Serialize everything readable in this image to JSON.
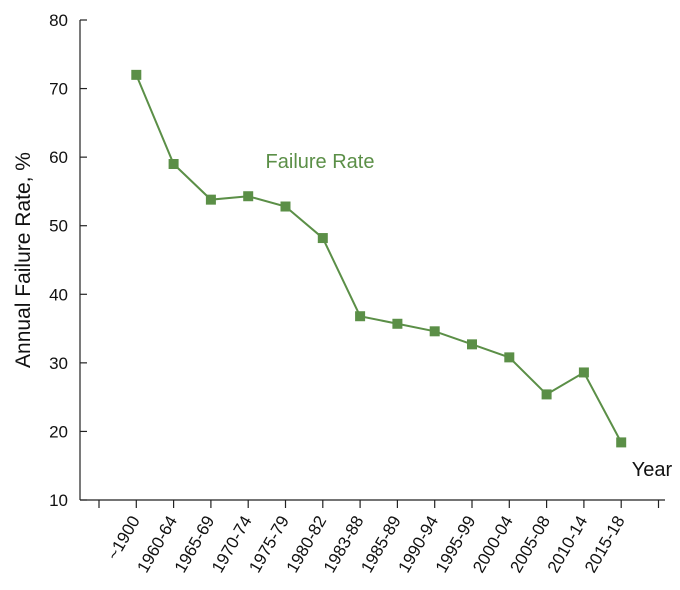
{
  "chart_data": {
    "type": "line",
    "y_label": "Annual Failure Rate, %",
    "x_label": "Year",
    "annotation": "Failure Rate",
    "categories": [
      "~1900",
      "1960-64",
      "1965-69",
      "1970-74",
      "1975-79",
      "1980-82",
      "1983-88",
      "1985-89",
      "1990-94",
      "1995-99",
      "2000-04",
      "2005-08",
      "2010-14",
      "2015-18"
    ],
    "series": [
      {
        "name": "Failure Rate",
        "color": "#5b8f47",
        "values": [
          72,
          59,
          53.8,
          54.3,
          52.8,
          48.2,
          36.8,
          35.7,
          34.6,
          32.7,
          30.8,
          25.4,
          28.6,
          18.4
        ]
      }
    ],
    "ylim": [
      10,
      80
    ],
    "yticks": [
      10,
      20,
      30,
      40,
      50,
      60,
      70,
      80
    ]
  }
}
